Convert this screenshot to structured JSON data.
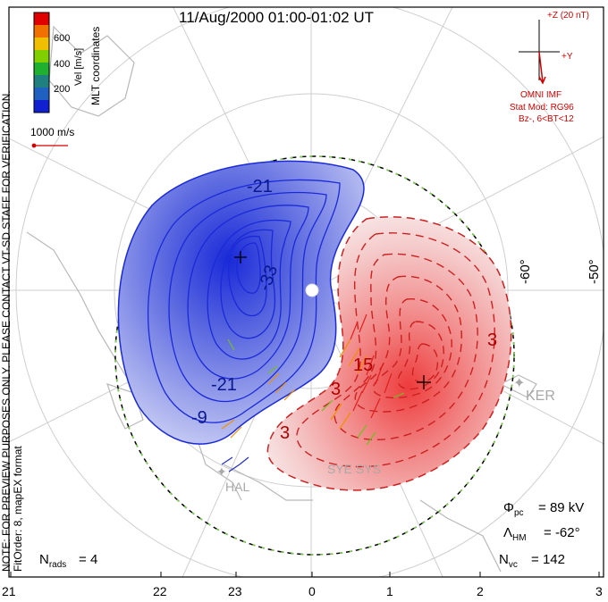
{
  "title": "11/Aug/2000 01:00-01:02 UT",
  "colorbar": {
    "label": "Vel [m/s]",
    "ticks": [
      "600",
      "400",
      "200"
    ],
    "colors": [
      "#e00000",
      "#f07000",
      "#f0c000",
      "#80d000",
      "#20b030",
      "#208080",
      "#2060c0",
      "#1020d0"
    ]
  },
  "coordinate_label": "MLT coordinates",
  "reference_vector": "1000 m/s",
  "side_note": {
    "line1": "NOTE: FOR PREVIEW PURPOSES ONLY. PLEASE CONTACT VT-SD STAFF FOR VERIFICATION.",
    "line2": "FitOrder: 8, mapEX format"
  },
  "imf": {
    "z_label": "+Z (20 nT)",
    "y_label": "+Y",
    "source": "OMNI IMF",
    "stat_mod": "Stat Mod: RG96",
    "bz": "Bz-, 6<BT<12"
  },
  "latitude_labels": [
    "-60°",
    "-50°"
  ],
  "contour_labels": {
    "neg": [
      "-21",
      "-33",
      "-21",
      "-9"
    ],
    "pos": [
      "3",
      "15",
      "3",
      "3"
    ]
  },
  "stations": [
    "KER",
    "SYE SYS",
    "HAL"
  ],
  "stats": {
    "phi_pc": "89 kV",
    "lambda_hm": "-62°",
    "n_vc": "142",
    "n_rads": "4"
  },
  "mlt_ticks": [
    "21",
    "22",
    "23",
    "0",
    "1",
    "2",
    "3"
  ]
}
